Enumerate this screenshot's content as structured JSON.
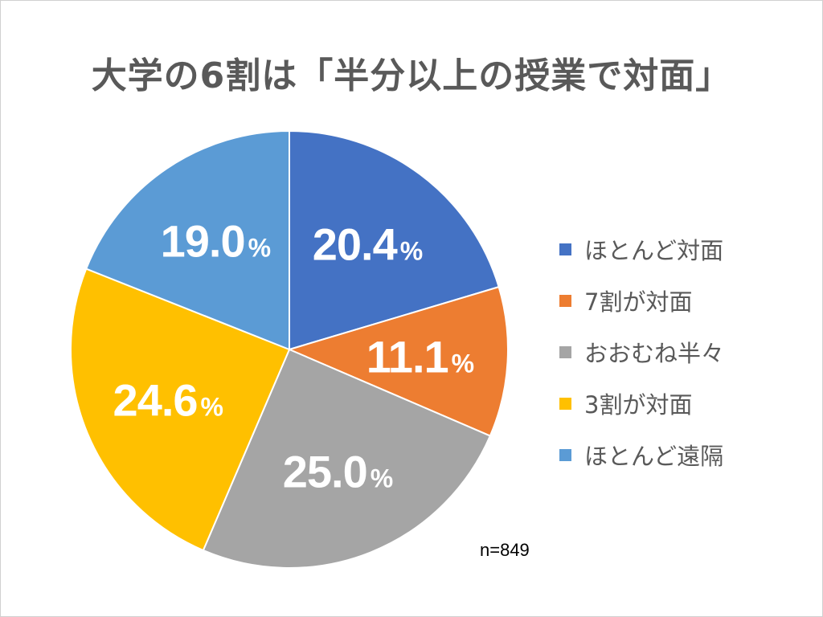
{
  "chart_data": {
    "type": "pie",
    "title": "大学の6割は「半分以上の授業で対面」",
    "unit": "%",
    "slices": [
      {
        "label": "ほとんど対面",
        "value": 20.4,
        "value_text": "20.4",
        "color": "#4472C4"
      },
      {
        "label": "7割が対面",
        "value": 11.1,
        "value_text": "11.1",
        "color": "#ED7D31"
      },
      {
        "label": "おおむね半々",
        "value": 25.0,
        "value_text": "25.0",
        "color": "#A5A5A5"
      },
      {
        "label": "3割が対面",
        "value": 24.6,
        "value_text": "24.6",
        "color": "#FFC000"
      },
      {
        "label": "ほとんど遠隔",
        "value": 19.0,
        "value_text": "19.0",
        "color": "#5B9BD5"
      }
    ],
    "legend_position": "right",
    "note": "n=849"
  }
}
